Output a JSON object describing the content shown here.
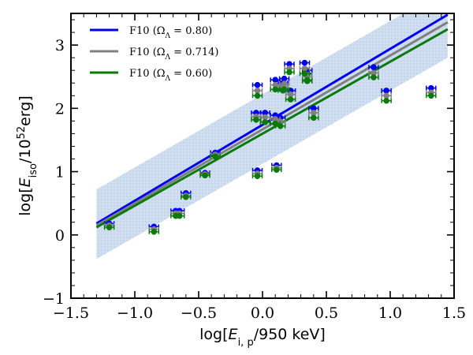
{
  "chart_data": {
    "type": "scatter",
    "xlim": [
      -1.5,
      1.5
    ],
    "ylim": [
      -1,
      3.5
    ],
    "x_ticks": [
      -1.5,
      -1.0,
      -0.5,
      0.0,
      0.5,
      1.0,
      1.5
    ],
    "x_tick_labels": [
      "−1.5",
      "−1.0",
      "−0.5",
      "0.0",
      "0.5",
      "1.0",
      "1.5"
    ],
    "y_ticks": [
      -1,
      0,
      1,
      2,
      3
    ],
    "y_tick_labels": [
      "−1",
      "0",
      "1",
      "2",
      "3"
    ],
    "xlabel": {
      "pre": "log[",
      "italic": "E",
      "sub": "i, p",
      "post": "/950 keV]"
    },
    "ylabel": {
      "pre": "log[",
      "italic": "E",
      "sub": "iso",
      "mid": "/10",
      "sup": "52",
      "post": "erg]"
    },
    "legend_position": "top-left",
    "grid": false,
    "colors": {
      "blue": "#0000ee",
      "gray": "#808080",
      "green": "#0a7a0a",
      "band_fill": "#c8d8ec"
    },
    "scatter_band": {
      "x": [
        -1.3,
        1.45
      ],
      "upper": [
        0.72,
        3.9
      ],
      "lower": [
        -0.38,
        2.8
      ]
    },
    "series": [
      {
        "name": "F10 (ΩΛ = 0.80)",
        "label_parts": {
          "text": "F10 (Ω",
          "sub": "Λ",
          "rest": " = 0.80)"
        },
        "color": "#0000ee",
        "line": {
          "x": [
            -1.3,
            1.45
          ],
          "y": [
            0.18,
            3.48
          ]
        },
        "points": [
          {
            "x": -1.2,
            "y": 0.18
          },
          {
            "x": -0.85,
            "y": 0.13
          },
          {
            "x": -0.68,
            "y": 0.38
          },
          {
            "x": -0.65,
            "y": 0.38
          },
          {
            "x": -0.6,
            "y": 0.66
          },
          {
            "x": -0.45,
            "y": 0.98
          },
          {
            "x": -0.37,
            "y": 1.3
          },
          {
            "x": -0.04,
            "y": 1.02
          },
          {
            "x": -0.04,
            "y": 2.37
          },
          {
            "x": -0.05,
            "y": 1.93
          },
          {
            "x": 0.02,
            "y": 1.93
          },
          {
            "x": 0.1,
            "y": 1.89
          },
          {
            "x": 0.1,
            "y": 2.45
          },
          {
            "x": 0.11,
            "y": 1.1
          },
          {
            "x": 0.14,
            "y": 1.85
          },
          {
            "x": 0.16,
            "y": 2.4
          },
          {
            "x": 0.17,
            "y": 2.47
          },
          {
            "x": 0.21,
            "y": 2.7
          },
          {
            "x": 0.22,
            "y": 2.28
          },
          {
            "x": 0.33,
            "y": 2.72
          },
          {
            "x": 0.35,
            "y": 2.55
          },
          {
            "x": 0.35,
            "y": 2.6
          },
          {
            "x": 0.4,
            "y": 2.0
          },
          {
            "x": 0.87,
            "y": 2.65
          },
          {
            "x": 0.97,
            "y": 2.28
          },
          {
            "x": 1.32,
            "y": 2.32
          }
        ]
      },
      {
        "name": "F10 (ΩΛ = 0.714)",
        "label_parts": {
          "text": "F10 (Ω",
          "sub": "Λ",
          "rest": " = 0.714)"
        },
        "color": "#808080",
        "line": {
          "x": [
            -1.3,
            1.45
          ],
          "y": [
            0.15,
            3.36
          ]
        },
        "points": [
          {
            "x": -1.2,
            "y": 0.15
          },
          {
            "x": -0.85,
            "y": 0.09
          },
          {
            "x": -0.68,
            "y": 0.34
          },
          {
            "x": -0.65,
            "y": 0.34
          },
          {
            "x": -0.6,
            "y": 0.62
          },
          {
            "x": -0.45,
            "y": 0.96
          },
          {
            "x": -0.37,
            "y": 1.27
          },
          {
            "x": -0.04,
            "y": 0.97
          },
          {
            "x": -0.04,
            "y": 2.28
          },
          {
            "x": -0.05,
            "y": 1.87
          },
          {
            "x": 0.02,
            "y": 1.86
          },
          {
            "x": 0.1,
            "y": 1.83
          },
          {
            "x": 0.1,
            "y": 2.37
          },
          {
            "x": 0.11,
            "y": 1.06
          },
          {
            "x": 0.14,
            "y": 1.79
          },
          {
            "x": 0.16,
            "y": 2.34
          },
          {
            "x": 0.17,
            "y": 2.39
          },
          {
            "x": 0.21,
            "y": 2.63
          },
          {
            "x": 0.22,
            "y": 2.22
          },
          {
            "x": 0.33,
            "y": 2.63
          },
          {
            "x": 0.35,
            "y": 2.5
          },
          {
            "x": 0.35,
            "y": 2.53
          },
          {
            "x": 0.4,
            "y": 1.93
          },
          {
            "x": 0.87,
            "y": 2.56
          },
          {
            "x": 0.97,
            "y": 2.2
          },
          {
            "x": 1.32,
            "y": 2.25
          }
        ]
      },
      {
        "name": "F10 (ΩΛ = 0.60)",
        "label_parts": {
          "text": "F10 (Ω",
          "sub": "Λ",
          "rest": " = 0.60)"
        },
        "color": "#0a7a0a",
        "line": {
          "x": [
            -1.3,
            1.45
          ],
          "y": [
            0.12,
            3.25
          ]
        },
        "points": [
          {
            "x": -1.2,
            "y": 0.12
          },
          {
            "x": -0.85,
            "y": 0.05
          },
          {
            "x": -0.68,
            "y": 0.3
          },
          {
            "x": -0.65,
            "y": 0.3
          },
          {
            "x": -0.6,
            "y": 0.6
          },
          {
            "x": -0.45,
            "y": 0.94
          },
          {
            "x": -0.37,
            "y": 1.24
          },
          {
            "x": -0.04,
            "y": 0.93
          },
          {
            "x": -0.04,
            "y": 2.2
          },
          {
            "x": -0.05,
            "y": 1.82
          },
          {
            "x": 0.02,
            "y": 1.78
          },
          {
            "x": 0.1,
            "y": 1.76
          },
          {
            "x": 0.1,
            "y": 2.3
          },
          {
            "x": 0.11,
            "y": 1.03
          },
          {
            "x": 0.14,
            "y": 1.72
          },
          {
            "x": 0.16,
            "y": 2.28
          },
          {
            "x": 0.17,
            "y": 2.3
          },
          {
            "x": 0.21,
            "y": 2.57
          },
          {
            "x": 0.22,
            "y": 2.14
          },
          {
            "x": 0.33,
            "y": 2.55
          },
          {
            "x": 0.35,
            "y": 2.43
          },
          {
            "x": 0.35,
            "y": 2.45
          },
          {
            "x": 0.4,
            "y": 1.85
          },
          {
            "x": 0.87,
            "y": 2.49
          },
          {
            "x": 0.97,
            "y": 2.12
          },
          {
            "x": 1.32,
            "y": 2.2
          }
        ]
      }
    ]
  }
}
